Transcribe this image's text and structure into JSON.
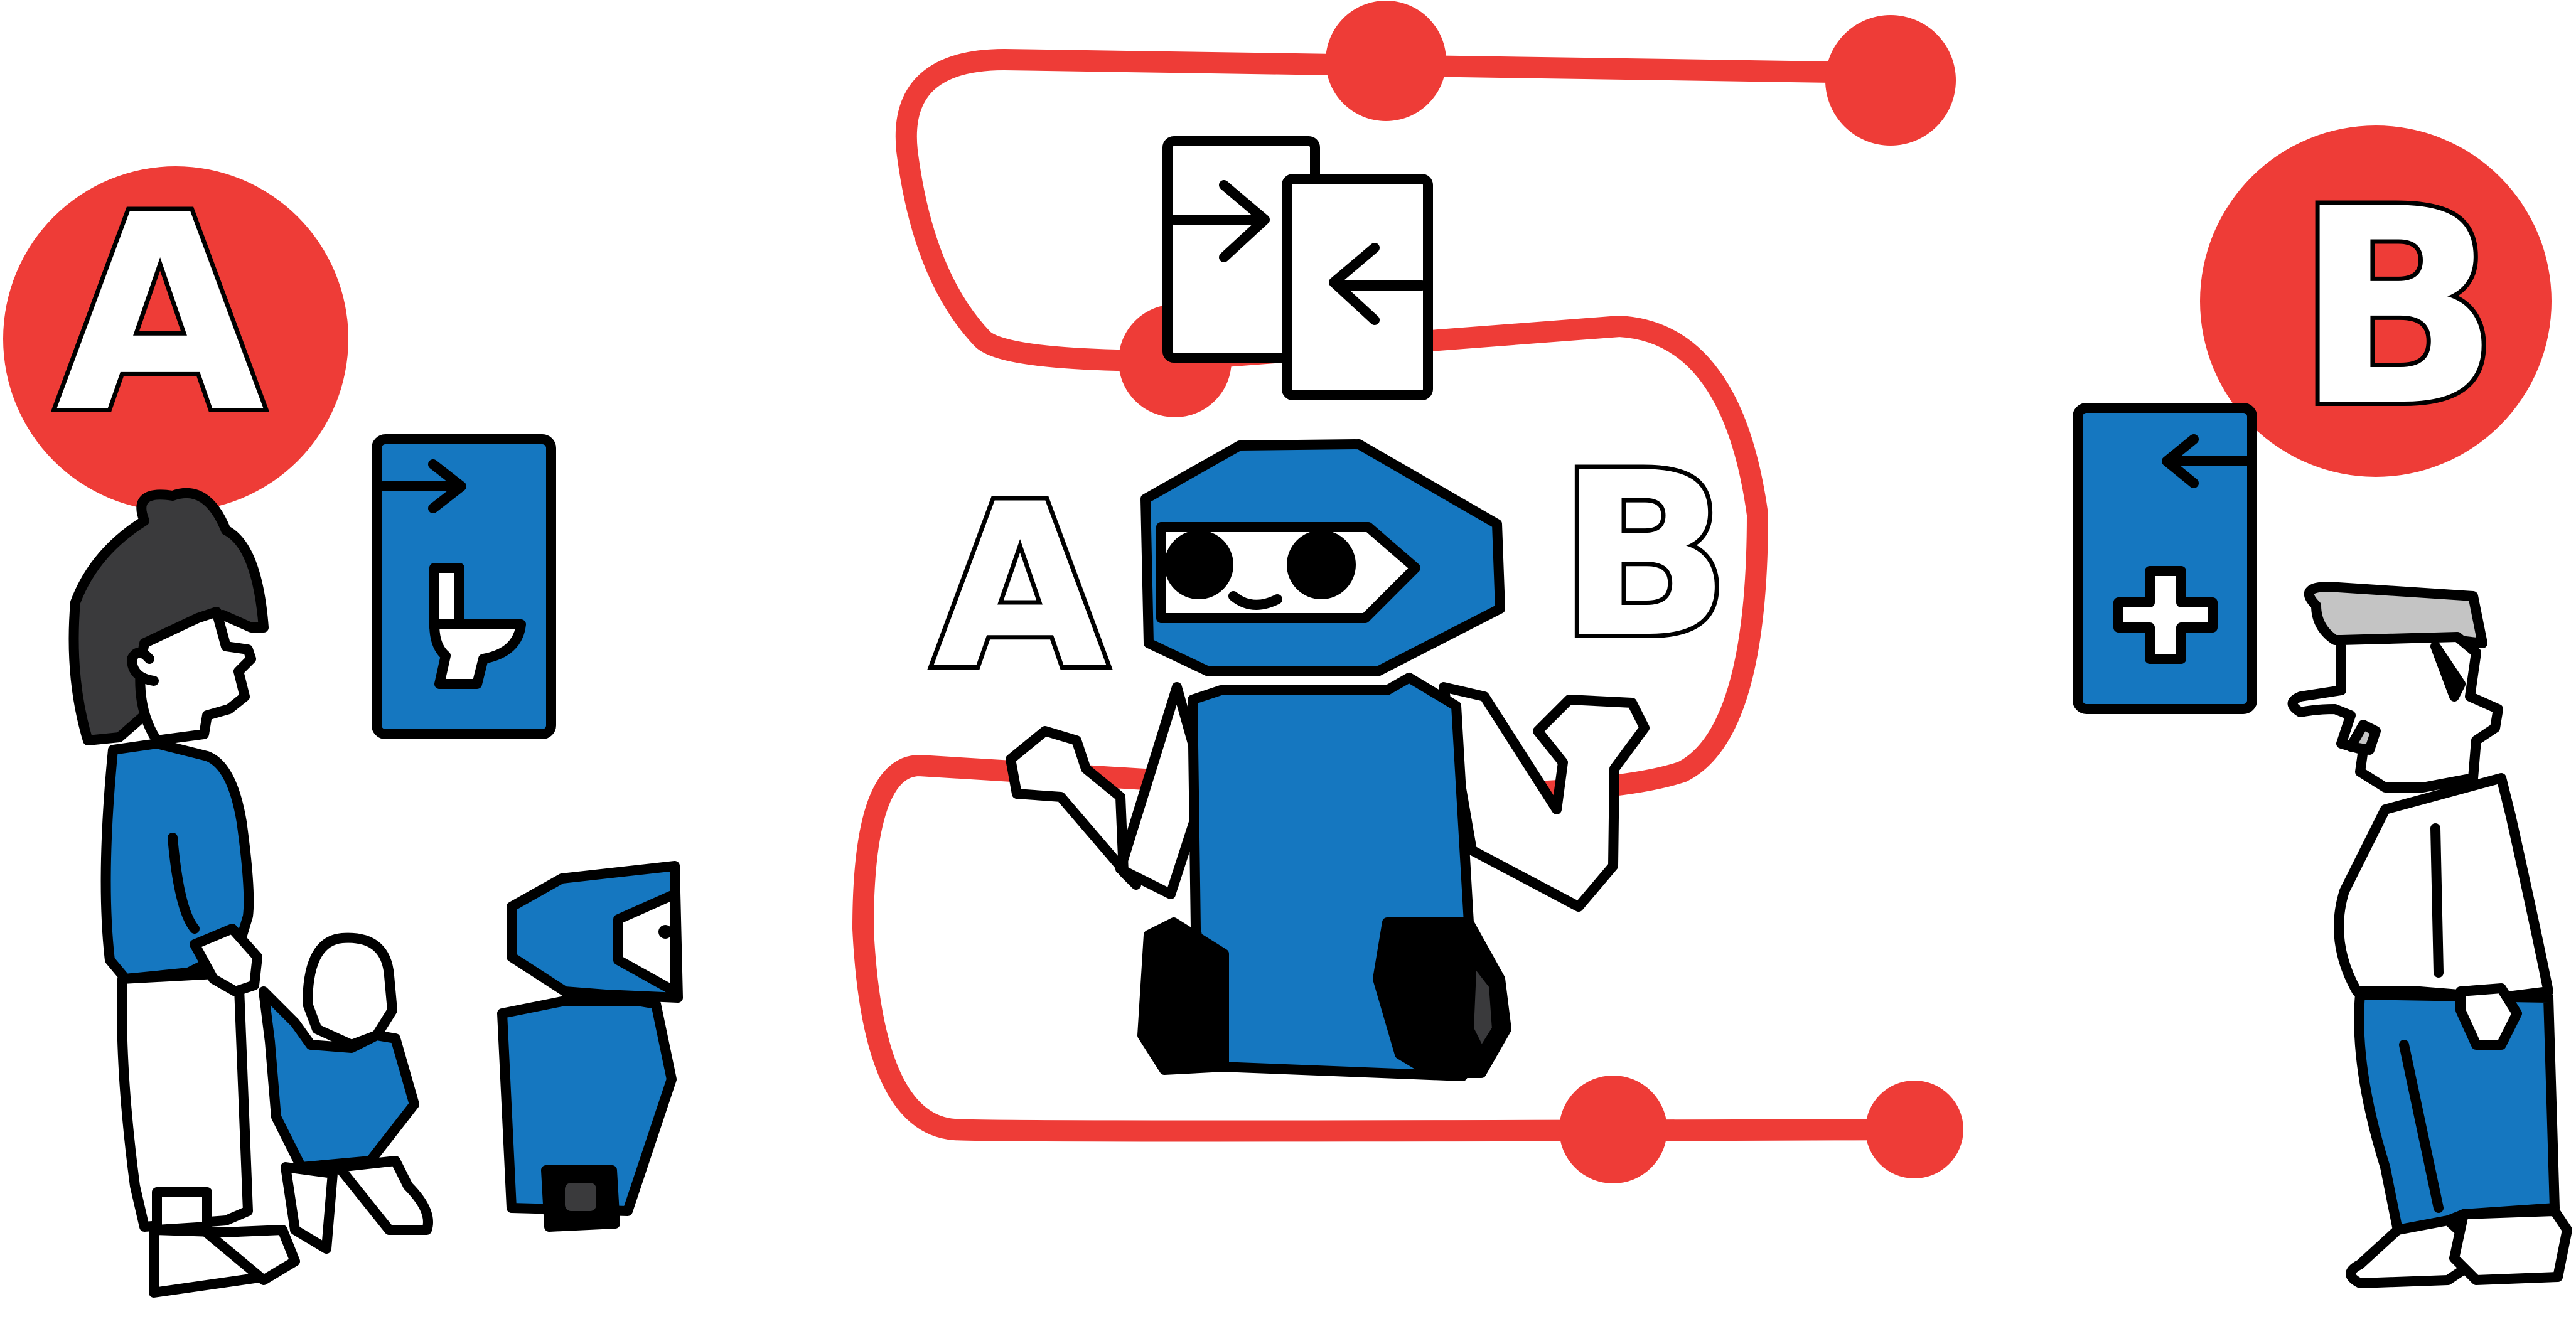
{
  "colors": {
    "red": "#ee3c37",
    "blue": "#1577c0",
    "black": "#000000",
    "dark_gray": "#3a3a3c",
    "light_gray": "#c4c4c4",
    "white": "#ffffff"
  },
  "labels": {
    "left_letter": "A",
    "right_letter": "B",
    "robot_left_letter": "A",
    "robot_right_letter": "B"
  },
  "icons": {
    "left_sign": "toilet-icon",
    "right_sign": "medical-cross-icon",
    "robot_screen": "arrows-in-icon"
  }
}
